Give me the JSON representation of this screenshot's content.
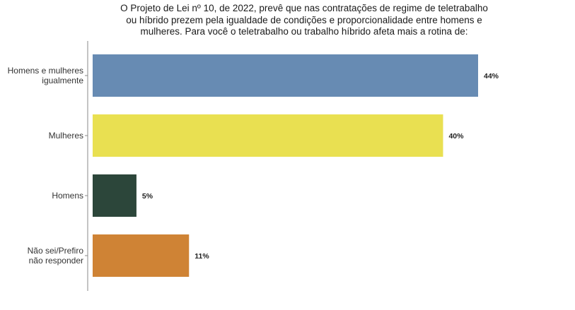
{
  "chart_data": {
    "type": "bar",
    "orientation": "horizontal",
    "title_lines": [
      "O Projeto de Lei nº 10, de 2022, prevê que nas contratações de regime de teletrabalho",
      "ou híbrido prezem pela igualdade de condições e proporcionalidade entre homens e",
      "mulheres. Para você o teletrabalho ou trabalho híbrido afeta mais a rotina de:"
    ],
    "categories": [
      [
        "Homens e mulheres",
        "igualmente"
      ],
      [
        "Mulheres"
      ],
      [
        "Homens"
      ],
      [
        "Não sei/Prefiro",
        "não responder"
      ]
    ],
    "values": [
      44,
      40,
      5,
      11
    ],
    "value_labels": [
      "44%",
      "40%",
      "5%",
      "11%"
    ],
    "colors": [
      "#678bb3",
      "#e9e051",
      "#2c463a",
      "#cf8335"
    ],
    "xlim": [
      0,
      50
    ],
    "grid": false,
    "legend": "none",
    "xlabel": "",
    "ylabel": ""
  }
}
